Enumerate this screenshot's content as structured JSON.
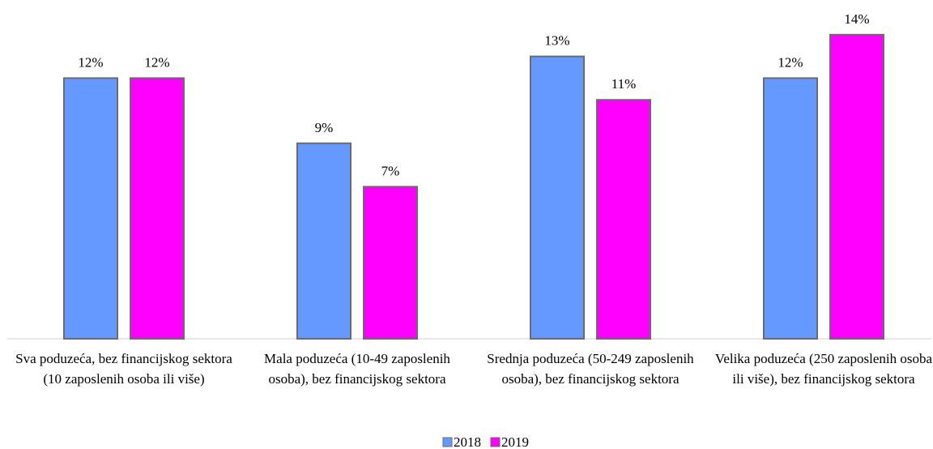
{
  "chart_data": {
    "type": "bar",
    "categories": [
      "Sva poduzeća, bez financijskog sektora (10 zaposlenih osoba ili više)",
      "Mala poduzeća (10-49 zaposlenih osoba), bez financijskog sektora",
      "Srednja poduzeća (50-249 zaposlenih osoba), bez financijskog sektora",
      "Velika poduzeća (250 zaposlenih osoba ili više), bez financijskog sektora"
    ],
    "series": [
      {
        "name": "2018",
        "color": "#6699ff",
        "values": [
          12,
          9,
          13,
          12
        ],
        "value_labels": [
          "12%",
          "9%",
          "13%",
          "12%"
        ]
      },
      {
        "name": "2019",
        "color": "#ff00ff",
        "values": [
          12,
          7,
          11,
          14
        ],
        "value_labels": [
          "12%",
          "7%",
          "11%",
          "14%"
        ]
      }
    ],
    "legend": "bottom"
  }
}
